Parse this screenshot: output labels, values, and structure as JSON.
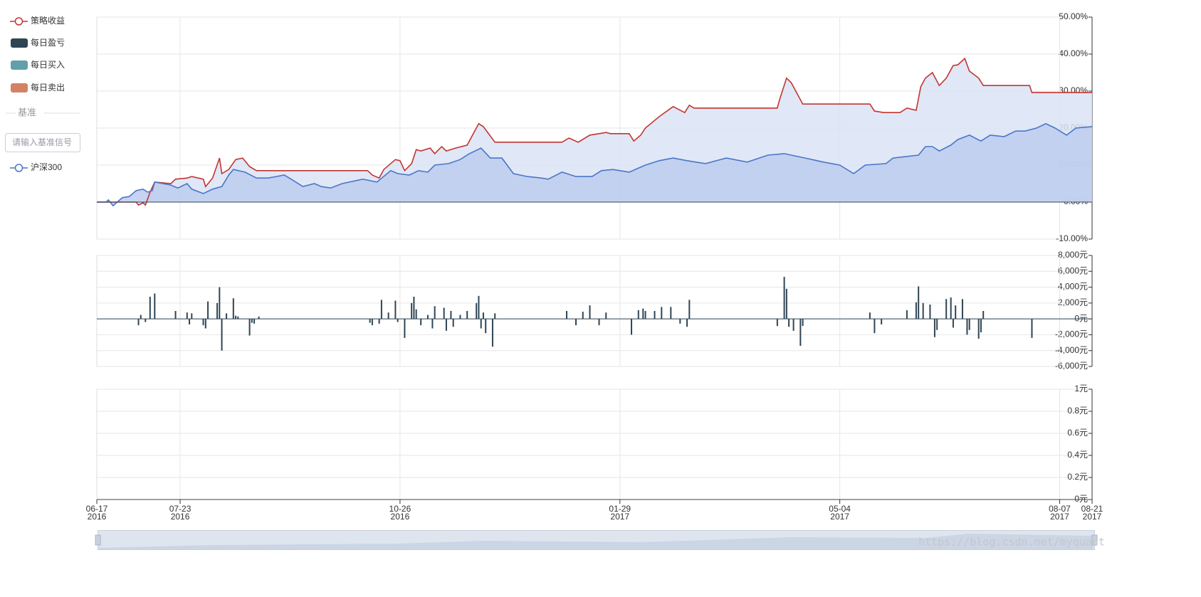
{
  "sidebar": {
    "benchmark_heading": "基准",
    "benchmark_input_placeholder": "请输入基准信号"
  },
  "watermark": "https://blog.csdn.net/myquant",
  "chart_data": [
    {
      "type": "line",
      "xlim": [
        "2016-06-17",
        "2017-08-21"
      ],
      "ylim": [
        -10,
        50
      ],
      "yticks": [
        {
          "value": -10,
          "label": "-10.00%"
        },
        {
          "value": 0,
          "label": "0.00%"
        },
        {
          "value": 10,
          "label": "10.00%"
        },
        {
          "value": 20,
          "label": "20.00%"
        },
        {
          "value": 30,
          "label": "30.00%"
        },
        {
          "value": 40,
          "label": "40.00%"
        },
        {
          "value": 50,
          "label": "50.00%"
        }
      ],
      "grid": true,
      "series": [
        {
          "name": "策略收益",
          "color": "#c23531",
          "fill": "#dae3f4",
          "x": [
            "2016-06-17",
            "2016-07-04",
            "2016-07-05",
            "2016-07-07",
            "2016-07-08",
            "2016-07-10",
            "2016-07-12",
            "2016-07-19",
            "2016-07-21",
            "2016-07-26",
            "2016-07-28",
            "2016-08-02",
            "2016-08-03",
            "2016-08-06",
            "2016-08-09",
            "2016-08-10",
            "2016-08-13",
            "2016-08-16",
            "2016-08-19",
            "2016-08-22",
            "2016-08-25",
            "2016-10-12",
            "2016-10-14",
            "2016-10-17",
            "2016-10-19",
            "2016-10-24",
            "2016-10-26",
            "2016-10-28",
            "2016-10-31",
            "2016-11-02",
            "2016-11-04",
            "2016-11-08",
            "2016-11-10",
            "2016-11-13",
            "2016-11-15",
            "2016-11-19",
            "2016-11-24",
            "2016-11-29",
            "2016-12-01",
            "2016-12-06",
            "2017-01-04",
            "2017-01-07",
            "2017-01-11",
            "2017-01-16",
            "2017-01-23",
            "2017-01-25",
            "2017-02-02",
            "2017-02-04",
            "2017-02-07",
            "2017-02-09",
            "2017-02-15",
            "2017-02-21",
            "2017-02-26",
            "2017-02-28",
            "2017-03-02",
            "2017-04-07",
            "2017-04-08",
            "2017-04-11",
            "2017-04-13",
            "2017-04-18",
            "2017-05-17",
            "2017-05-19",
            "2017-05-23",
            "2017-05-30",
            "2017-06-02",
            "2017-06-06",
            "2017-06-08",
            "2017-06-10",
            "2017-06-13",
            "2017-06-16",
            "2017-06-19",
            "2017-06-22",
            "2017-06-24",
            "2017-06-27",
            "2017-06-29",
            "2017-07-03",
            "2017-07-05",
            "2017-07-25",
            "2017-07-26",
            "2017-08-21"
          ],
          "values": [
            0,
            0,
            -0.8,
            -0.2,
            -0.8,
            2.7,
            5.4,
            5.0,
            6.2,
            6.5,
            6.9,
            6.2,
            4.2,
            6.5,
            11.9,
            7.7,
            8.8,
            11.5,
            11.9,
            9.6,
            8.5,
            8.5,
            7.3,
            6.5,
            8.8,
            11.5,
            11.2,
            8.5,
            10.4,
            14.2,
            13.8,
            14.6,
            13.1,
            15.0,
            13.8,
            14.6,
            15.4,
            21.2,
            20.4,
            16.2,
            16.2,
            17.3,
            16.2,
            18.1,
            18.8,
            18.5,
            18.5,
            16.5,
            18.1,
            20.0,
            23.1,
            25.8,
            24.2,
            26.2,
            25.4,
            25.4,
            27.7,
            33.5,
            32.3,
            26.5,
            26.5,
            24.6,
            24.2,
            24.2,
            25.4,
            24.8,
            31.2,
            33.5,
            35.0,
            31.5,
            33.5,
            36.9,
            37.1,
            38.8,
            35.4,
            33.5,
            31.5,
            31.5,
            29.6,
            29.6
          ]
        },
        {
          "name": "沪深300",
          "color": "#4a76c9",
          "fill": "#bccdee",
          "x": [
            "2016-06-17",
            "2016-06-21",
            "2016-06-22",
            "2016-06-24",
            "2016-06-28",
            "2016-07-01",
            "2016-07-04",
            "2016-07-07",
            "2016-07-09",
            "2016-07-11",
            "2016-07-12",
            "2016-07-19",
            "2016-07-22",
            "2016-07-26",
            "2016-07-28",
            "2016-08-02",
            "2016-08-06",
            "2016-08-10",
            "2016-08-13",
            "2016-08-15",
            "2016-08-20",
            "2016-08-25",
            "2016-08-30",
            "2016-09-06",
            "2016-09-09",
            "2016-09-14",
            "2016-09-19",
            "2016-09-22",
            "2016-09-26",
            "2016-10-01",
            "2016-10-10",
            "2016-10-16",
            "2016-10-22",
            "2016-10-25",
            "2016-10-30",
            "2016-11-03",
            "2016-11-07",
            "2016-11-10",
            "2016-11-16",
            "2016-11-21",
            "2016-11-25",
            "2016-11-30",
            "2016-12-04",
            "2016-12-09",
            "2016-12-14",
            "2016-12-20",
            "2016-12-26",
            "2016-12-29",
            "2017-01-04",
            "2017-01-10",
            "2017-01-17",
            "2017-01-21",
            "2017-01-26",
            "2017-02-02",
            "2017-02-09",
            "2017-02-15",
            "2017-02-21",
            "2017-02-27",
            "2017-03-07",
            "2017-03-16",
            "2017-03-25",
            "2017-04-03",
            "2017-04-10",
            "2017-04-19",
            "2017-04-27",
            "2017-05-04",
            "2017-05-10",
            "2017-05-15",
            "2017-05-24",
            "2017-05-27",
            "2017-06-07",
            "2017-06-10",
            "2017-06-13",
            "2017-06-16",
            "2017-06-21",
            "2017-06-24",
            "2017-06-29",
            "2017-07-04",
            "2017-07-08",
            "2017-07-14",
            "2017-07-19",
            "2017-07-23",
            "2017-07-28",
            "2017-08-01",
            "2017-08-05",
            "2017-08-10",
            "2017-08-14",
            "2017-08-21"
          ],
          "values": [
            0,
            0,
            0.6,
            -1.0,
            1.2,
            1.5,
            3.1,
            3.5,
            2.7,
            3.1,
            5.4,
            4.6,
            3.8,
            5.0,
            3.5,
            2.3,
            3.5,
            4.2,
            7.3,
            8.8,
            8.1,
            6.5,
            6.5,
            7.3,
            6.2,
            4.2,
            5.0,
            4.2,
            3.8,
            5.0,
            6.2,
            5.4,
            8.5,
            7.7,
            7.3,
            8.5,
            8.1,
            10.0,
            10.4,
            11.5,
            13.1,
            14.6,
            11.9,
            11.9,
            7.7,
            6.9,
            6.5,
            6.2,
            8.1,
            6.9,
            6.9,
            8.5,
            8.8,
            8.1,
            10.0,
            11.2,
            11.9,
            11.2,
            10.4,
            11.9,
            10.8,
            12.7,
            13.1,
            11.9,
            10.8,
            10.0,
            7.7,
            10.0,
            10.4,
            11.9,
            12.7,
            15.0,
            15.0,
            13.8,
            15.4,
            16.9,
            18.1,
            16.5,
            18.1,
            17.7,
            19.2,
            19.2,
            20.0,
            21.2,
            20.0,
            18.1,
            20.0,
            20.4
          ]
        }
      ]
    },
    {
      "type": "bar",
      "xlim": [
        "2016-06-17",
        "2017-08-21"
      ],
      "ylim": [
        -6000,
        8000
      ],
      "yticks": [
        {
          "value": -6000,
          "label": "-6,000元"
        },
        {
          "value": -4000,
          "label": "-4,000元"
        },
        {
          "value": -2000,
          "label": "-2,000元"
        },
        {
          "value": 0,
          "label": "0元"
        },
        {
          "value": 2000,
          "label": "2,000元"
        },
        {
          "value": 4000,
          "label": "4,000元"
        },
        {
          "value": 6000,
          "label": "6,000元"
        },
        {
          "value": 8000,
          "label": "8,000元"
        }
      ],
      "grid": true,
      "series": [
        {
          "name": "每日盈亏",
          "color": "#2f4554",
          "x": [
            "2016-07-05",
            "2016-07-06",
            "2016-07-08",
            "2016-07-10",
            "2016-07-12",
            "2016-07-21",
            "2016-07-26",
            "2016-07-27",
            "2016-07-28",
            "2016-08-02",
            "2016-08-03",
            "2016-08-04",
            "2016-08-08",
            "2016-08-09",
            "2016-08-10",
            "2016-08-12",
            "2016-08-15",
            "2016-08-16",
            "2016-08-17",
            "2016-08-22",
            "2016-08-23",
            "2016-08-24",
            "2016-08-26",
            "2016-10-13",
            "2016-10-14",
            "2016-10-17",
            "2016-10-18",
            "2016-10-21",
            "2016-10-24",
            "2016-10-25",
            "2016-10-28",
            "2016-10-31",
            "2016-11-01",
            "2016-11-02",
            "2016-11-04",
            "2016-11-07",
            "2016-11-09",
            "2016-11-10",
            "2016-11-14",
            "2016-11-15",
            "2016-11-17",
            "2016-11-18",
            "2016-11-21",
            "2016-11-24",
            "2016-11-28",
            "2016-11-29",
            "2016-11-30",
            "2016-12-01",
            "2016-12-02",
            "2016-12-05",
            "2016-12-06",
            "2017-01-06",
            "2017-01-10",
            "2017-01-13",
            "2017-01-16",
            "2017-01-20",
            "2017-01-23",
            "2017-02-03",
            "2017-02-06",
            "2017-02-08",
            "2017-02-09",
            "2017-02-13",
            "2017-02-16",
            "2017-02-20",
            "2017-02-24",
            "2017-02-27",
            "2017-02-28",
            "2017-04-07",
            "2017-04-10",
            "2017-04-11",
            "2017-04-12",
            "2017-04-14",
            "2017-04-17",
            "2017-04-18",
            "2017-05-17",
            "2017-05-19",
            "2017-05-22",
            "2017-06-02",
            "2017-06-06",
            "2017-06-07",
            "2017-06-09",
            "2017-06-12",
            "2017-06-14",
            "2017-06-15",
            "2017-06-19",
            "2017-06-21",
            "2017-06-22",
            "2017-06-23",
            "2017-06-26",
            "2017-06-28",
            "2017-06-29",
            "2017-07-03",
            "2017-07-04",
            "2017-07-05",
            "2017-07-26"
          ],
          "values": [
            -800,
            500,
            -400,
            2800,
            3200,
            1000,
            800,
            -700,
            700,
            -800,
            -1200,
            2200,
            2000,
            4000,
            -4000,
            700,
            2600,
            400,
            300,
            -2100,
            -500,
            -600,
            300,
            -500,
            -800,
            -600,
            2400,
            800,
            2300,
            -400,
            -2400,
            2000,
            2800,
            1200,
            -800,
            500,
            -1200,
            1600,
            1400,
            -1500,
            1000,
            -1000,
            500,
            1000,
            2000,
            2900,
            -1200,
            800,
            -1800,
            -3500,
            700,
            1000,
            -800,
            900,
            1700,
            -800,
            800,
            -2000,
            1100,
            1300,
            1000,
            1000,
            1500,
            1500,
            -600,
            -1000,
            2400,
            -900,
            5300,
            3800,
            -1000,
            -1500,
            -3400,
            -900,
            800,
            -1800,
            -700,
            1100,
            2100,
            4100,
            2000,
            1800,
            -2300,
            -1400,
            2500,
            2700,
            -1100,
            1700,
            2500,
            -2000,
            -1400,
            -2500,
            -1700,
            1000,
            -2400
          ]
        }
      ]
    },
    {
      "type": "bar",
      "xlim": [
        "2016-06-17",
        "2017-08-21"
      ],
      "ylim": [
        0,
        1
      ],
      "yticks": [
        {
          "value": 0,
          "label": "0元"
        },
        {
          "value": 0.2,
          "label": "0.2元"
        },
        {
          "value": 0.4,
          "label": "0.4元"
        },
        {
          "value": 0.6,
          "label": "0.6元"
        },
        {
          "value": 0.8,
          "label": "0.8元"
        },
        {
          "value": 1,
          "label": "1元"
        }
      ],
      "grid": true,
      "xticks": [
        {
          "value": "2016-06-17",
          "label": [
            "06-17",
            "2016"
          ]
        },
        {
          "value": "2016-07-23",
          "label": [
            "07-23",
            "2016"
          ]
        },
        {
          "value": "2016-10-26",
          "label": [
            "10-26",
            "2016"
          ]
        },
        {
          "value": "2017-01-29",
          "label": [
            "01-29",
            "2017"
          ]
        },
        {
          "value": "2017-05-04",
          "label": [
            "05-04",
            "2017"
          ]
        },
        {
          "value": "2017-08-07",
          "label": [
            "08-07",
            "2017"
          ]
        },
        {
          "value": "2017-08-21",
          "label": [
            "08-21",
            "2017"
          ]
        }
      ],
      "series": [
        {
          "name": "每日买入",
          "color": "#61a0a8",
          "x": [],
          "values": []
        },
        {
          "name": "每日卖出",
          "color": "#d48265",
          "x": [],
          "values": []
        }
      ]
    }
  ]
}
